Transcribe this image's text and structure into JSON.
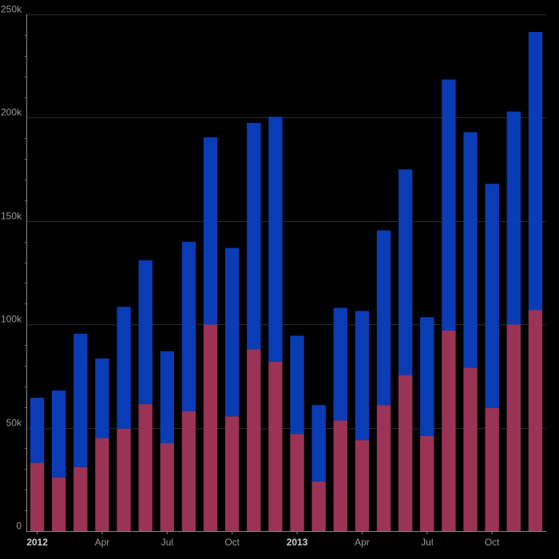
{
  "chart_data": {
    "type": "bar",
    "stacked": true,
    "title": "",
    "xlabel": "",
    "ylabel": "",
    "ylim": [
      0,
      250000
    ],
    "y_ticks": [
      {
        "value": 0,
        "label": "0"
      },
      {
        "value": 50000,
        "label": "50k"
      },
      {
        "value": 100000,
        "label": "100k"
      },
      {
        "value": 150000,
        "label": "150k"
      },
      {
        "value": 200000,
        "label": "200k"
      },
      {
        "value": 250000,
        "label": "250k"
      }
    ],
    "categories": [
      "2012-01",
      "2012-02",
      "2012-03",
      "2012-04",
      "2012-05",
      "2012-06",
      "2012-07",
      "2012-08",
      "2012-09",
      "2012-10",
      "2012-11",
      "2012-12",
      "2013-01",
      "2013-02",
      "2013-03",
      "2013-04",
      "2013-05",
      "2013-06",
      "2013-07",
      "2013-08",
      "2013-09",
      "2013-10",
      "2013-11",
      "2013-12"
    ],
    "x_tick_labels": [
      {
        "category": "2012-01",
        "label": "2012",
        "bold": true
      },
      {
        "category": "2012-04",
        "label": "Apr",
        "bold": false
      },
      {
        "category": "2012-07",
        "label": "Jul",
        "bold": false
      },
      {
        "category": "2012-10",
        "label": "Oct",
        "bold": false
      },
      {
        "category": "2013-01",
        "label": "2013",
        "bold": true
      },
      {
        "category": "2013-04",
        "label": "Apr",
        "bold": false
      },
      {
        "category": "2013-07",
        "label": "Jul",
        "bold": false
      },
      {
        "category": "2013-10",
        "label": "Oct",
        "bold": false
      }
    ],
    "series": [
      {
        "color": "#9b3356",
        "values": [
          33000,
          26000,
          31000,
          45000,
          49500,
          61500,
          42500,
          58000,
          100000,
          55500,
          88000,
          82000,
          47000,
          24000,
          53500,
          44000,
          61000,
          75500,
          46000,
          97000,
          79000,
          59500,
          100000,
          107000
        ]
      },
      {
        "color": "#0a3cb5",
        "values": [
          31500,
          42000,
          64500,
          38500,
          59000,
          69500,
          44500,
          82000,
          90500,
          81500,
          109500,
          118500,
          47500,
          37000,
          54500,
          62500,
          84500,
          99500,
          57500,
          121500,
          114000,
          108500,
          103000,
          134500
        ]
      }
    ],
    "grid": true,
    "legend": "none"
  }
}
